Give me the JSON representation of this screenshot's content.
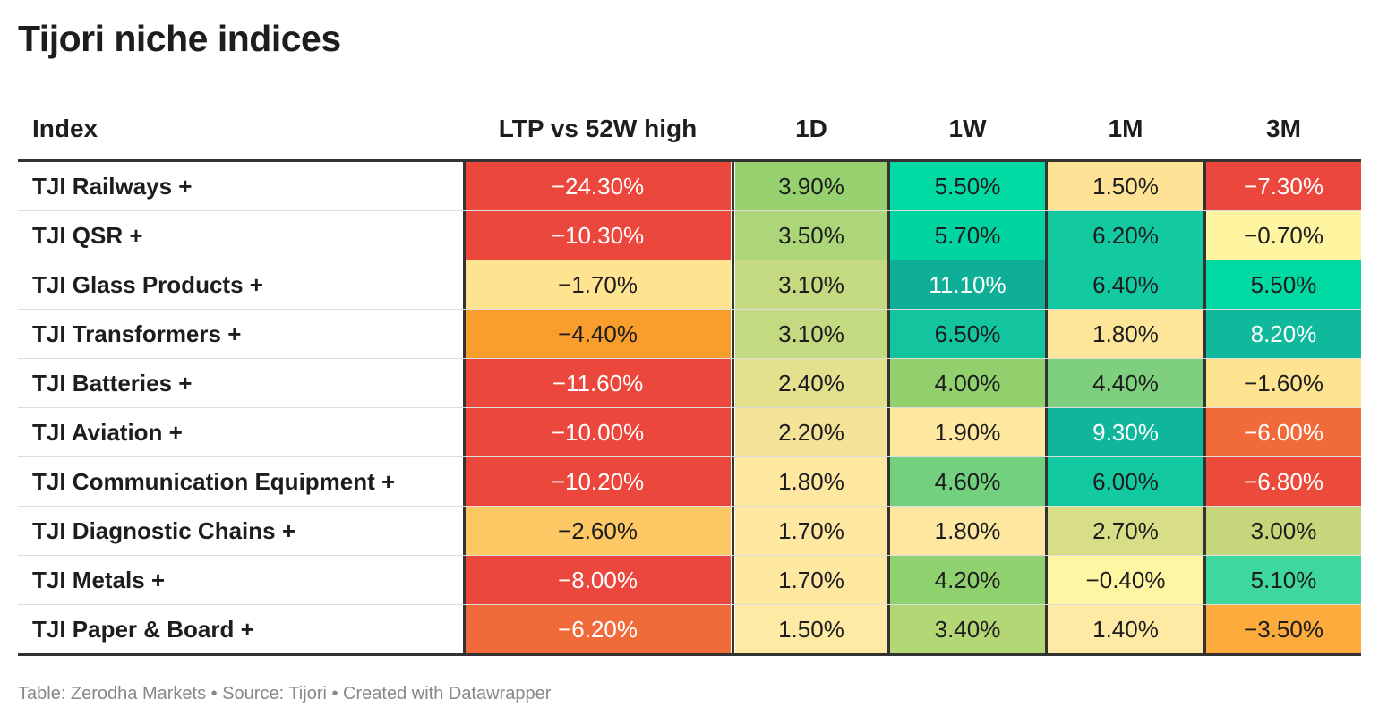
{
  "title": "Tijori niche indices",
  "footer": "Table: Zerodha Markets • Source: Tijori • Created with Datawrapper",
  "chart_data": {
    "type": "table",
    "columns": [
      "Index",
      "LTP vs 52W high",
      "1D",
      "1W",
      "1M",
      "3M"
    ],
    "rows": [
      {
        "name": "TJI Railways +",
        "values": [
          "−24.30%",
          "3.90%",
          "5.50%",
          "1.50%",
          "−7.30%"
        ],
        "colors": [
          "#ec473c",
          "#97d06e",
          "#00d9a2",
          "#fee396",
          "#ec473c"
        ],
        "text": [
          "#ffffff",
          "#1d1d1d",
          "#1d1d1d",
          "#1d1d1d",
          "#ffffff"
        ]
      },
      {
        "name": "TJI QSR +",
        "values": [
          "−10.30%",
          "3.50%",
          "5.70%",
          "6.20%",
          "−0.70%"
        ],
        "colors": [
          "#ec473c",
          "#acd679",
          "#00d4a0",
          "#12c9a0",
          "#fff4a0"
        ],
        "text": [
          "#ffffff",
          "#1d1d1d",
          "#1d1d1d",
          "#1d1d1d",
          "#1d1d1d"
        ]
      },
      {
        "name": "TJI Glass Products +",
        "values": [
          "−1.70%",
          "3.10%",
          "11.10%",
          "6.40%",
          "5.50%"
        ],
        "colors": [
          "#fee391",
          "#c4da80",
          "#0fae97",
          "#12c9a0",
          "#00d9a2"
        ],
        "text": [
          "#1d1d1d",
          "#1d1d1d",
          "#ffffff",
          "#1d1d1d",
          "#1d1d1d"
        ]
      },
      {
        "name": "TJI Transformers +",
        "values": [
          "−4.40%",
          "3.10%",
          "6.50%",
          "1.80%",
          "8.20%"
        ],
        "colors": [
          "#f99e2c",
          "#c4da80",
          "#12c59f",
          "#fde69a",
          "#10b99c"
        ],
        "text": [
          "#1d1d1d",
          "#1d1d1d",
          "#1d1d1d",
          "#1d1d1d",
          "#ffffff"
        ]
      },
      {
        "name": "TJI Batteries +",
        "values": [
          "−11.60%",
          "2.40%",
          "4.00%",
          "4.40%",
          "−1.60%"
        ],
        "colors": [
          "#ec473c",
          "#e3e08e",
          "#92d06e",
          "#7fd07e",
          "#fee391"
        ],
        "text": [
          "#ffffff",
          "#1d1d1d",
          "#1d1d1d",
          "#1d1d1d",
          "#1d1d1d"
        ]
      },
      {
        "name": "TJI Aviation +",
        "values": [
          "−10.00%",
          "2.20%",
          "1.90%",
          "9.30%",
          "−6.00%"
        ],
        "colors": [
          "#ec473c",
          "#f3e298",
          "#fee7a0",
          "#10b69b",
          "#f16a3a"
        ],
        "text": [
          "#ffffff",
          "#1d1d1d",
          "#1d1d1d",
          "#ffffff",
          "#ffffff"
        ]
      },
      {
        "name": "TJI Communication Equipment +",
        "values": [
          "−10.20%",
          "1.80%",
          "4.60%",
          "6.00%",
          "−6.80%"
        ],
        "colors": [
          "#ec473c",
          "#fee7a0",
          "#72d07f",
          "#12c9a0",
          "#ec4a3a"
        ],
        "text": [
          "#ffffff",
          "#1d1d1d",
          "#1d1d1d",
          "#1d1d1d",
          "#ffffff"
        ]
      },
      {
        "name": "TJI Diagnostic Chains +",
        "values": [
          "−2.60%",
          "1.70%",
          "1.80%",
          "2.70%",
          "3.00%"
        ],
        "colors": [
          "#fec964",
          "#fee7a0",
          "#fee7a0",
          "#d8dd88",
          "#c6d67b"
        ],
        "text": [
          "#1d1d1d",
          "#1d1d1d",
          "#1d1d1d",
          "#1d1d1d",
          "#1d1d1d"
        ]
      },
      {
        "name": "TJI Metals +",
        "values": [
          "−8.00%",
          "1.70%",
          "4.20%",
          "−0.40%",
          "5.10%"
        ],
        "colors": [
          "#ec473c",
          "#fee7a0",
          "#8fd06f",
          "#fff6a4",
          "#3ed89e"
        ],
        "text": [
          "#ffffff",
          "#1d1d1d",
          "#1d1d1d",
          "#1d1d1d",
          "#1d1d1d"
        ]
      },
      {
        "name": "TJI Paper & Board +",
        "values": [
          "−6.20%",
          "1.50%",
          "3.40%",
          "1.40%",
          "−3.50%"
        ],
        "colors": [
          "#f16a3a",
          "#feeaa4",
          "#b3d774",
          "#feeaa4",
          "#fcab3c"
        ],
        "text": [
          "#ffffff",
          "#1d1d1d",
          "#1d1d1d",
          "#1d1d1d",
          "#1d1d1d"
        ]
      }
    ]
  }
}
